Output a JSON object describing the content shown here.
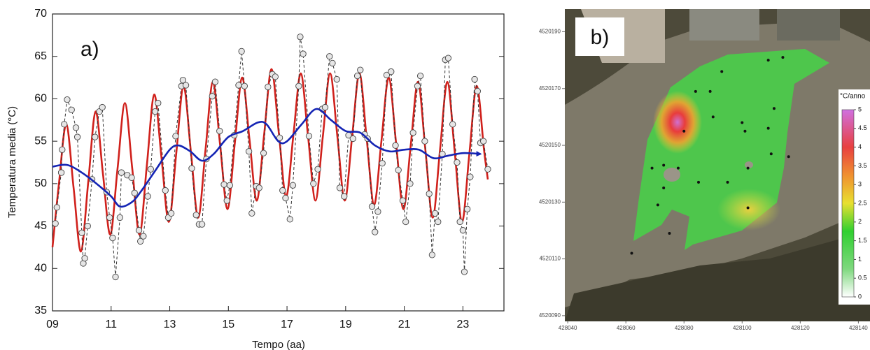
{
  "chart_data": [
    {
      "type": "line",
      "label": "a)",
      "xlabel": "Tempo (aa)",
      "ylabel": "Temperatura media (°C)",
      "xlim": [
        9,
        24.4
      ],
      "ylim": [
        35,
        70
      ],
      "xticks": [
        {
          "value": 9,
          "label": "09"
        },
        11,
        13,
        15,
        17,
        19,
        21,
        23
      ],
      "yticks": [
        35,
        40,
        45,
        50,
        55,
        60,
        65,
        70
      ],
      "series": [
        {
          "color": "#d0211c",
          "style": "solid",
          "marker": false,
          "x": [
            9.0,
            9.22,
            9.47,
            9.72,
            9.97,
            10.22,
            10.47,
            10.72,
            10.97,
            11.22,
            11.47,
            11.72,
            11.97,
            12.22,
            12.47,
            12.72,
            12.97,
            13.22,
            13.47,
            13.72,
            13.97,
            14.22,
            14.47,
            14.72,
            14.97,
            15.22,
            15.47,
            15.72,
            15.97,
            16.22,
            16.47,
            16.72,
            16.97,
            17.22,
            17.47,
            17.72,
            17.97,
            18.22,
            18.47,
            18.72,
            18.97,
            19.22,
            19.47,
            19.72,
            19.97,
            20.22,
            20.47,
            20.72,
            20.97,
            21.22,
            21.47,
            21.72,
            21.97,
            22.22,
            22.47,
            22.72,
            22.97,
            23.22,
            23.47,
            23.72,
            23.85
          ],
          "values": [
            42.5,
            50,
            57,
            49.5,
            42,
            50.2,
            58.5,
            51.2,
            44,
            51.8,
            59.5,
            51.8,
            44,
            52.2,
            60.5,
            53,
            45.5,
            53.5,
            61.5,
            53.8,
            46,
            54,
            62,
            54.5,
            47,
            54.8,
            62.5,
            55.2,
            48,
            55.8,
            63.5,
            56,
            48.5,
            55.8,
            63,
            55.5,
            48,
            55.5,
            63,
            55.5,
            48,
            55.5,
            63,
            55.2,
            47.5,
            55,
            62.5,
            54.8,
            47,
            54.5,
            62,
            54,
            46,
            54,
            62,
            53.8,
            45.5,
            53.5,
            61.5,
            54,
            50.5
          ]
        },
        {
          "color": "#333333",
          "style": "dashed",
          "marker": true,
          "x": [
            9.1,
            9.15,
            9.3,
            9.33,
            9.4,
            9.5,
            9.65,
            9.8,
            9.85,
            10.0,
            10.05,
            10.1,
            10.2,
            10.35,
            10.45,
            10.6,
            10.7,
            10.85,
            10.95,
            11.05,
            11.15,
            11.3,
            11.35,
            11.55,
            11.7,
            11.8,
            11.95,
            12.0,
            12.1,
            12.25,
            12.35,
            12.5,
            12.6,
            12.85,
            12.95,
            13.05,
            13.2,
            13.4,
            13.45,
            13.55,
            13.75,
            13.9,
            14.0,
            14.1,
            14.25,
            14.45,
            14.55,
            14.7,
            14.85,
            14.95,
            15.05,
            15.2,
            15.35,
            15.45,
            15.55,
            15.7,
            15.8,
            15.95,
            16.05,
            16.2,
            16.35,
            16.5,
            16.6,
            16.75,
            16.85,
            16.95,
            17.1,
            17.2,
            17.4,
            17.45,
            17.55,
            17.75,
            17.9,
            18.05,
            18.2,
            18.3,
            18.45,
            18.55,
            18.7,
            18.8,
            18.95,
            19.1,
            19.25,
            19.4,
            19.5,
            19.65,
            19.75,
            19.9,
            20.0,
            20.1,
            20.25,
            20.4,
            20.55,
            20.7,
            20.8,
            20.95,
            21.05,
            21.2,
            21.3,
            21.45,
            21.55,
            21.7,
            21.85,
            21.95,
            22.05,
            22.15,
            22.3,
            22.4,
            22.5,
            22.65,
            22.8,
            22.9,
            23.0,
            23.05,
            23.15,
            23.25,
            23.4,
            23.5,
            23.6,
            23.7,
            23.85
          ],
          "values": [
            45.3,
            47.2,
            51.3,
            54,
            57,
            59.9,
            58.7,
            56.6,
            55.5,
            44.2,
            40.6,
            41.2,
            45,
            50.5,
            55.5,
            58.5,
            59,
            49,
            46,
            43.6,
            39,
            46,
            51.3,
            51,
            50.7,
            48.9,
            44.5,
            43.2,
            43.8,
            48.5,
            51.7,
            58.5,
            59.5,
            49.2,
            46,
            46.5,
            55.6,
            61.5,
            62.2,
            61.6,
            51.8,
            46.3,
            45.2,
            45.2,
            52.9,
            60.3,
            62,
            56.2,
            49.9,
            48,
            49.8,
            55.7,
            61.6,
            65.6,
            61.5,
            53.8,
            46.5,
            49.7,
            49.5,
            53.6,
            61.4,
            62.9,
            62.6,
            55.4,
            49.2,
            48.3,
            45.8,
            49.8,
            61.5,
            67.3,
            65.3,
            55.6,
            50,
            51.7,
            58.8,
            59,
            65,
            64.2,
            62.3,
            49.5,
            48.5,
            55.7,
            55.3,
            62.7,
            63.4,
            55.8,
            55.3,
            47.3,
            44.3,
            46.7,
            52.4,
            62.8,
            63.2,
            54.5,
            51.6,
            48,
            45.5,
            50,
            56,
            61.5,
            62.7,
            55,
            48.8,
            41.6,
            46.5,
            45.5,
            53.5,
            64.6,
            64.8,
            57,
            52.5,
            45.5,
            44.5,
            39.6,
            47,
            50.8,
            62.3,
            60.9,
            54.8,
            55,
            51.7
          ]
        },
        {
          "color": "#1424b4",
          "style": "solid",
          "marker": false,
          "arrow": true,
          "x": [
            9.0,
            9.5,
            10,
            10.5,
            11,
            11.3,
            11.7,
            12,
            12.5,
            13,
            13.3,
            13.7,
            14.1,
            14.5,
            15,
            15.5,
            16,
            16.3,
            16.7,
            17,
            17.5,
            18,
            18.5,
            19,
            19.5,
            20,
            20.5,
            21,
            21.5,
            22,
            22.5,
            23,
            23.6
          ],
          "values": [
            52,
            52.2,
            51.3,
            50,
            48.5,
            47.3,
            47.8,
            49,
            51.5,
            54,
            54.5,
            53.8,
            52.7,
            53.5,
            55.5,
            56.2,
            57.2,
            57,
            55,
            55,
            57,
            58.8,
            57.5,
            56.2,
            56,
            54.5,
            53.8,
            54,
            54,
            53,
            53.3,
            53.6,
            53.5
          ]
        }
      ]
    },
    {
      "type": "map",
      "label": "b)",
      "xlim": [
        428039,
        428144
      ],
      "ylim": [
        4520088,
        4520198
      ],
      "xticks": [
        428040,
        428060,
        428080,
        428100,
        428120,
        428140
      ],
      "yticks": [
        4520090,
        4520110,
        4520130,
        4520150,
        4520170,
        4520190
      ],
      "points": {
        "color": "#111111",
        "x": [
          428093,
          428084,
          428089,
          428080,
          428090,
          428100,
          428101,
          428109,
          428111,
          428069,
          428073,
          428078,
          428073,
          428085,
          428095,
          428102,
          428116,
          428110,
          428071,
          428102,
          428075,
          428062,
          428109,
          428114
        ],
        "y": [
          4520176,
          4520169,
          4520169,
          4520155,
          4520160,
          4520158,
          4520155,
          4520156,
          4520163,
          4520142,
          4520143,
          4520142,
          4520135,
          4520137,
          4520137,
          4520142,
          4520146,
          4520147,
          4520129,
          4520128,
          4520119,
          4520112,
          4520180,
          4520181
        ]
      },
      "colorbar": {
        "title": "°C/anno",
        "lim": [
          0,
          5
        ],
        "ticks": [
          0,
          0.5,
          1,
          1.5,
          2,
          2.5,
          3,
          3.5,
          4,
          4.5,
          5
        ]
      }
    }
  ]
}
